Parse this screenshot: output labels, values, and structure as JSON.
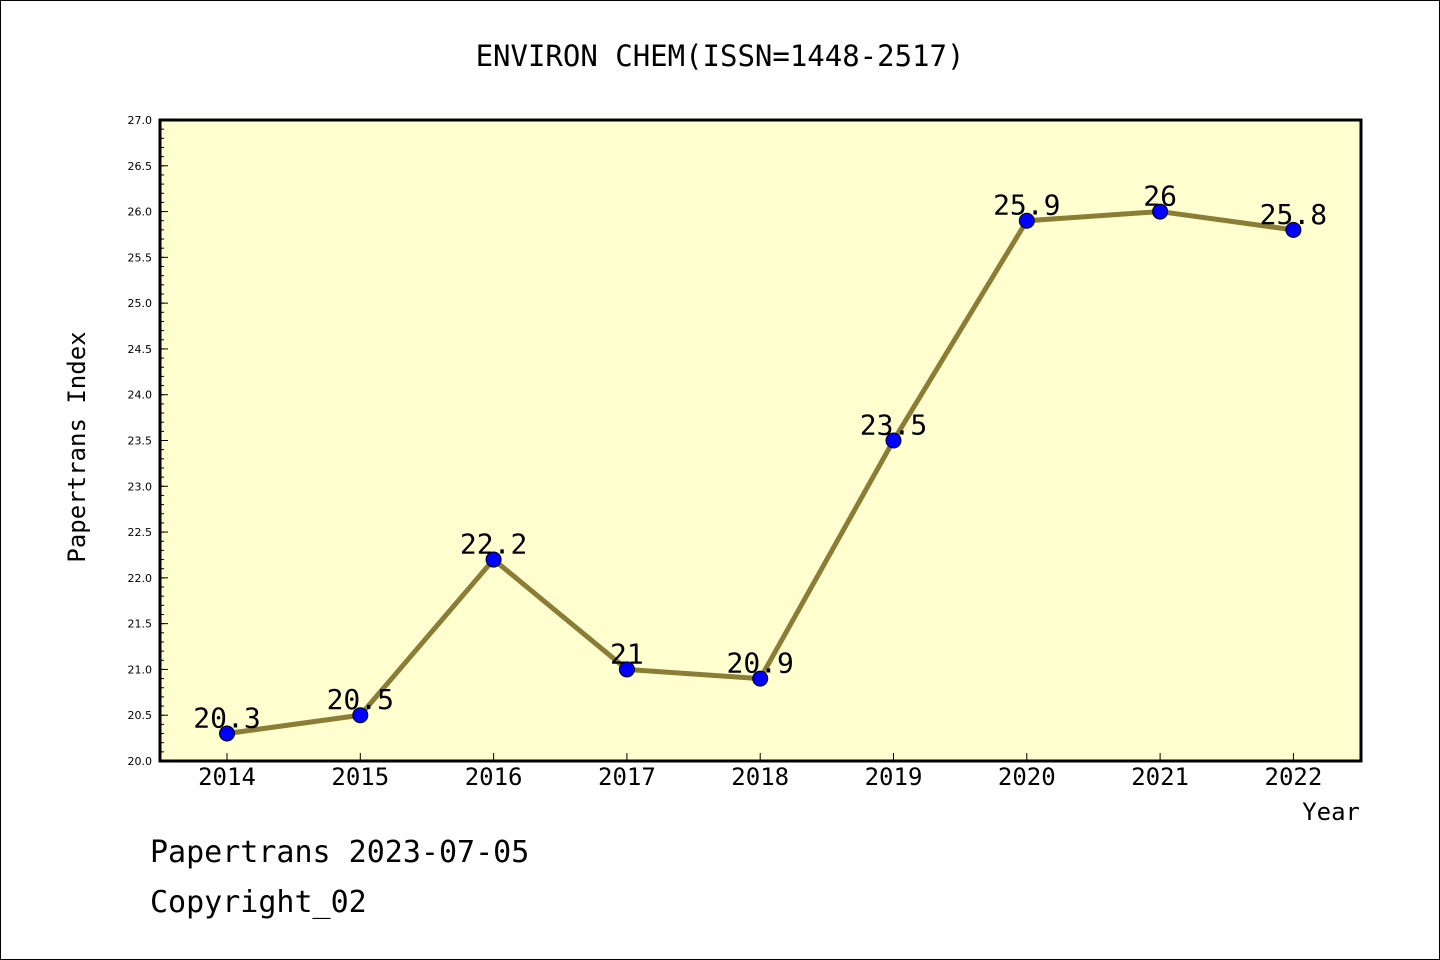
{
  "chart_data": {
    "type": "line",
    "title": "ENVIRON CHEM(ISSN=1448-2517)",
    "xlabel": "Year",
    "ylabel": "Papertrans Index",
    "categories": [
      "2014",
      "2015",
      "2016",
      "2017",
      "2018",
      "2019",
      "2020",
      "2021",
      "2022"
    ],
    "values": [
      20.3,
      20.5,
      22.2,
      21,
      20.9,
      23.5,
      25.9,
      26,
      25.8
    ],
    "data_labels": [
      "20.3",
      "20.5",
      "22.2",
      "21",
      "20.9",
      "23.5",
      "25.9",
      "26",
      "25.8"
    ],
    "ylim": [
      20.0,
      27.0
    ],
    "y_ticks": [
      "20.0",
      "20.5",
      "21.0",
      "21.5",
      "22.0",
      "22.5",
      "23.0",
      "23.5",
      "24.0",
      "24.5",
      "25.0",
      "25.5",
      "26.0",
      "26.5",
      "27.0"
    ],
    "grid": false,
    "legend": "none",
    "colors": {
      "plot_background": "#ffffd0",
      "line": "#8b7d35",
      "marker": "#0000ff"
    }
  },
  "footer": {
    "line1": "Papertrans 2023-07-05",
    "line2": "Copyright_02"
  }
}
